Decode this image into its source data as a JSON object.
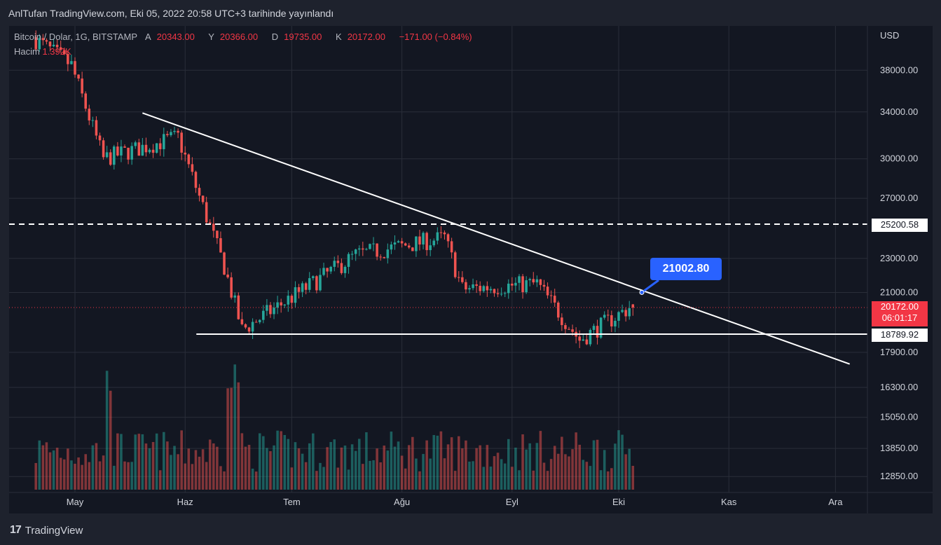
{
  "header": {
    "publish_text": "AnlTufan TradingView.com, Eki 05, 2022 20:58 UTC+3 tarihinde yayınlandı"
  },
  "legend": {
    "symbol": "Bitcoin / Dolar, 1G, BITSTAMP",
    "open_label": "A",
    "open": "20343.00",
    "high_label": "Y",
    "high": "20366.00",
    "low_label": "D",
    "low": "19735.00",
    "close_label": "K",
    "close": "20172.00",
    "change": "−171.00 (−0.84%)",
    "volume_label": "Hacim",
    "volume": "1.392K"
  },
  "axis": {
    "currency": "USD",
    "price_ticks": [
      "38000.00",
      "34000.00",
      "30000.00",
      "27000.00",
      "23000.00",
      "21000.00",
      "17900.00",
      "16300.00",
      "15050.00",
      "13850.00",
      "12850.00"
    ],
    "time_ticks": [
      "May",
      "Haz",
      "Tem",
      "Ağu",
      "Eyl",
      "Eki",
      "Kas",
      "Ara"
    ]
  },
  "annotations": {
    "callout_value": "21002.80",
    "resistance_level": "25200.58",
    "support_level": "18789.92",
    "last_price": "20172.00",
    "countdown": "06:01:17"
  },
  "colors": {
    "up": "#26a69a",
    "down": "#ef5350",
    "background": "#131722",
    "callout": "#2962ff"
  },
  "footer": {
    "brand": "TradingView"
  },
  "chart_data": {
    "type": "candlestick",
    "symbol": "BTCUSD",
    "scale": "log",
    "title": "Bitcoin / Dolar, 1G, BITSTAMP",
    "ylabel": "USD",
    "ylim": [
      11800,
      43500
    ],
    "x_ticks": [
      "May",
      "Haz",
      "Tem",
      "Ağu",
      "Eyl",
      "Eki",
      "Kas",
      "Ara"
    ],
    "y_ticks": [
      38000,
      34000,
      30000,
      27000,
      23000,
      21000,
      17900,
      16300,
      15050,
      13850,
      12850
    ],
    "horizontal_lines": [
      {
        "value": 25200.58,
        "style": "dashed"
      },
      {
        "value": 18789.92,
        "style": "solid"
      }
    ],
    "trendline": {
      "from": {
        "date": "2022-05-20",
        "value": 33900
      },
      "to": {
        "date": "2022-12-05",
        "value": 17350
      }
    },
    "callout": {
      "value": 21002.8
    },
    "last": {
      "open": 20343.0,
      "high": 20366.0,
      "low": 19735.0,
      "close": 20172.0,
      "change": -171.0,
      "change_pct": -0.84,
      "volume": "1.392K"
    },
    "key_closes": [
      {
        "date": "2022-04-20",
        "close": 41500
      },
      {
        "date": "2022-05-01",
        "close": 38500
      },
      {
        "date": "2022-05-10",
        "close": 30000
      },
      {
        "date": "2022-05-31",
        "close": 31800
      },
      {
        "date": "2022-06-13",
        "close": 22500
      },
      {
        "date": "2022-06-18",
        "close": 19000
      },
      {
        "date": "2022-07-20",
        "close": 23200
      },
      {
        "date": "2022-08-14",
        "close": 24300
      },
      {
        "date": "2022-08-19",
        "close": 21200
      },
      {
        "date": "2022-09-09",
        "close": 21500
      },
      {
        "date": "2022-09-21",
        "close": 18500
      },
      {
        "date": "2022-10-05",
        "close": 20172
      }
    ]
  }
}
